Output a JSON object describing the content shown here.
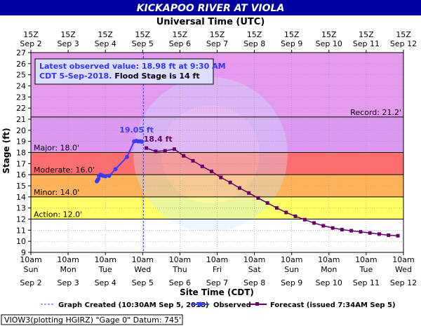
{
  "chart_data": {
    "type": "line",
    "title": "KICKAPOO RIVER AT VIOLA",
    "top_axis_title": "Universal Time (UTC)",
    "xlabel": "Site Time (CDT)",
    "ylabel": "Stage (ft)",
    "ylim": [
      9,
      27
    ],
    "yticks": [
      9,
      10,
      11,
      12,
      13,
      14,
      15,
      16,
      17,
      18,
      19,
      20,
      21,
      22,
      23,
      24,
      25,
      26,
      27
    ],
    "grid": true,
    "top_ticks": [
      {
        "l1": "15Z",
        "l2": "Sep 2"
      },
      {
        "l1": "15Z",
        "l2": "Sep 3"
      },
      {
        "l1": "15Z",
        "l2": "Sep 4"
      },
      {
        "l1": "15Z",
        "l2": "Sep 5"
      },
      {
        "l1": "15Z",
        "l2": "Sep 6"
      },
      {
        "l1": "15Z",
        "l2": "Sep 7"
      },
      {
        "l1": "15Z",
        "l2": "Sep 8"
      },
      {
        "l1": "15Z",
        "l2": "Sep 9"
      },
      {
        "l1": "15Z",
        "l2": "Sep 10"
      },
      {
        "l1": "15Z",
        "l2": "Sep 11"
      },
      {
        "l1": "15Z",
        "l2": "Sep 12"
      }
    ],
    "bottom_ticks": [
      {
        "l1": "10am",
        "l2": "Sun",
        "l3": "Sep 2"
      },
      {
        "l1": "10am",
        "l2": "Mon",
        "l3": "Sep 3"
      },
      {
        "l1": "10am",
        "l2": "Tue",
        "l3": "Sep 4"
      },
      {
        "l1": "10am",
        "l2": "Wed",
        "l3": "Sep 5"
      },
      {
        "l1": "10am",
        "l2": "Thu",
        "l3": "Sep 6"
      },
      {
        "l1": "10am",
        "l2": "Fri",
        "l3": "Sep 7"
      },
      {
        "l1": "10am",
        "l2": "Sat",
        "l3": "Sep 8"
      },
      {
        "l1": "10am",
        "l2": "Sun",
        "l3": "Sep 9"
      },
      {
        "l1": "10am",
        "l2": "Mon",
        "l3": "Sep 10"
      },
      {
        "l1": "10am",
        "l2": "Tue",
        "l3": "Sep 11"
      },
      {
        "l1": "10am",
        "l2": "Wed",
        "l3": "Sep 12"
      }
    ],
    "bands": [
      {
        "name": "record",
        "from": 21.2,
        "to": 27,
        "color": "#e59aef"
      },
      {
        "name": "major",
        "from": 18,
        "to": 21.2,
        "color": "#cc88ee"
      },
      {
        "name": "major-fill",
        "from": 18,
        "to": 21.2,
        "color": "#dd99f2"
      },
      {
        "name": "moderate",
        "from": 16,
        "to": 18,
        "color": "#ff6e6e"
      },
      {
        "name": "minor",
        "from": 14,
        "to": 16,
        "color": "#ffb359"
      },
      {
        "name": "action",
        "from": 12,
        "to": 14,
        "color": "#ffff66"
      },
      {
        "name": "normal",
        "from": 9,
        "to": 12,
        "color": "#ffffff"
      }
    ],
    "levels": [
      {
        "label": "Record: 21.2'",
        "value": 21.2,
        "align": "right"
      },
      {
        "label": "Major: 18.0'",
        "value": 18,
        "align": "left"
      },
      {
        "label": "Moderate: 16.0'",
        "value": 16,
        "align": "left"
      },
      {
        "label": "Minor: 14.0'",
        "value": 14,
        "align": "left"
      },
      {
        "label": "Action: 12.0'",
        "value": 12,
        "align": "left"
      }
    ],
    "created_x": 3.02,
    "observed": {
      "name": "Observed",
      "color": "#3b3bff",
      "x": [
        1.77,
        1.79,
        1.81,
        1.83,
        1.87,
        1.9,
        1.94,
        2.0,
        2.1,
        2.27,
        2.58,
        2.77,
        2.83,
        2.88,
        2.94,
        2.98
      ],
      "values": [
        15.4,
        15.5,
        15.6,
        15.9,
        16.0,
        15.95,
        15.9,
        15.85,
        15.9,
        16.5,
        17.6,
        19.0,
        19.05,
        19.0,
        19.0,
        18.98
      ]
    },
    "forecast": {
      "name": "Forecast (issued 7:34AM Sep 5)",
      "color": "#660066",
      "x": [
        3.1,
        3.35,
        3.6,
        3.85,
        4.1,
        4.35,
        4.6,
        4.85,
        5.1,
        5.35,
        5.6,
        5.85,
        6.1,
        6.35,
        6.6,
        6.85,
        7.1,
        7.35,
        7.6,
        7.85,
        8.1,
        8.35,
        8.6,
        8.85,
        9.1,
        9.35,
        9.6,
        9.85
      ],
      "values": [
        18.4,
        18.1,
        18.15,
        18.3,
        17.7,
        17.25,
        16.75,
        16.3,
        15.75,
        15.3,
        14.8,
        14.35,
        13.9,
        13.45,
        13.0,
        12.6,
        12.25,
        11.95,
        11.65,
        11.4,
        11.2,
        11.05,
        10.95,
        10.85,
        10.75,
        10.65,
        10.55,
        10.5
      ]
    },
    "peak_labels": [
      {
        "text": "19.05 ft",
        "x": 2.83,
        "y": 19.05,
        "color": "#3b3bff",
        "dx": -24,
        "dy": -12
      },
      {
        "text": "18.4 ft",
        "x": 3.1,
        "y": 18.4,
        "color": "#660066",
        "dx": -4,
        "dy": -9
      }
    ],
    "info": {
      "line1": "Latest observed value: 18.98 ft at 9:30 AM",
      "line2a": "CDT 5-Sep-2018.",
      "line2b": "Flood Stage is 14 ft"
    },
    "legend": {
      "created": "Graph Created (10:30AM Sep 5, 2018)",
      "observed": "Observed",
      "forecast": "Forecast (issued 7:34AM Sep 5)"
    },
    "footer": "VIOW3(plotting HGIRZ) \"Gage 0\" Datum: 745'"
  }
}
